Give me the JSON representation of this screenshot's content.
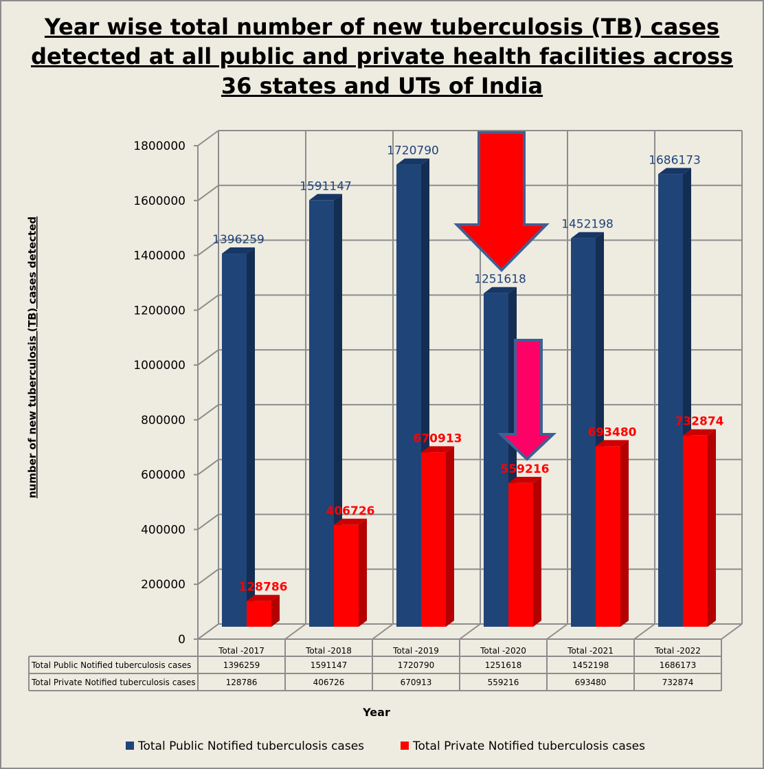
{
  "chart_data": {
    "type": "bar",
    "title": "Year wise total number of new tuberculosis (TB) cases detected at all public and private health facilities across 36 states and UTs of India",
    "title_lines": [
      "Year wise total number of new tuberculosis (TB) cases",
      "detected at all public and private health facilities across",
      "36 states and UTs of India"
    ],
    "xlabel": "Year",
    "ylabel": "number of new tuberculosis (TB) cases detected",
    "ylim": [
      0,
      1800000
    ],
    "yticks": [
      "0",
      "200000",
      "400000",
      "600000",
      "800000",
      "1000000",
      "1200000",
      "1400000",
      "1600000",
      "1800000"
    ],
    "categories": [
      "Total -2017",
      "Total -2018",
      "Total -2019",
      "Total -2020",
      "Total -2021",
      "Total -2022"
    ],
    "series": [
      {
        "name": "Total Public Notified tuberculosis cases",
        "color": "#1f4478",
        "values": [
          1396259,
          1591147,
          1720790,
          1251618,
          1452198,
          1686173
        ]
      },
      {
        "name": "Total Private Notified tuberculosis cases",
        "color": "#ff0000",
        "values": [
          128786,
          406726,
          670913,
          559216,
          693480,
          732874
        ]
      }
    ],
    "grid": true,
    "legend": "bottom",
    "data_table": true,
    "annotations": [
      "red down arrow above 2020 public bar",
      "pink down arrow above 2020 private bar"
    ]
  }
}
